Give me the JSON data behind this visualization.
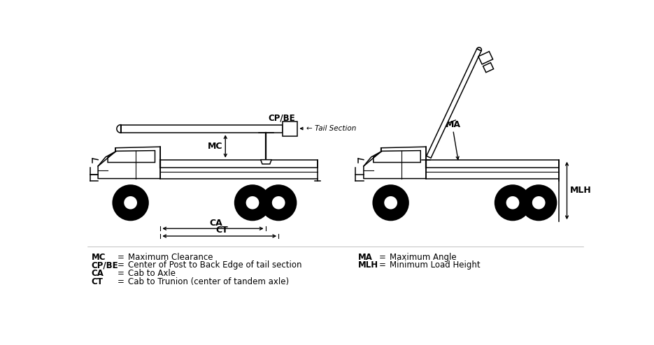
{
  "bg_color": "#ffffff",
  "line_color": "#000000",
  "figure_width": 9.35,
  "figure_height": 4.94,
  "dpi": 100,
  "legend_items_left": [
    [
      "MC",
      "Maximum Clearance"
    ],
    [
      "CP/BE",
      "Center of Post to Back Edge of tail section"
    ],
    [
      "CA",
      "Cab to Axle"
    ],
    [
      "CT",
      "Cab to Trunion (center of tandem axle)"
    ]
  ],
  "legend_items_right": [
    [
      "MA",
      "Maximum Angle"
    ],
    [
      "MLH",
      "Minimum Load Height"
    ]
  ]
}
